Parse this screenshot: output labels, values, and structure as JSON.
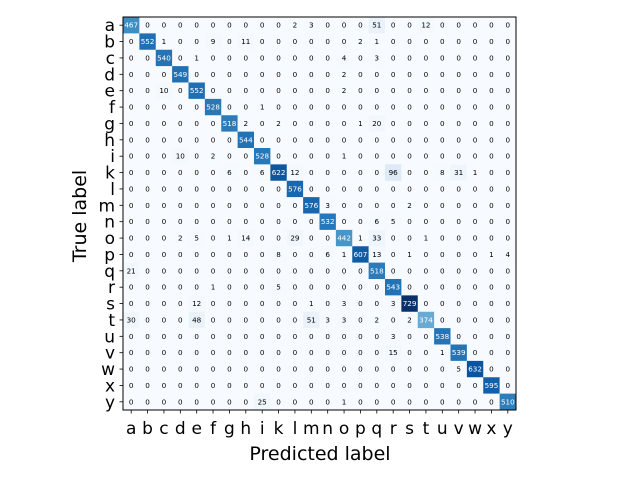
{
  "chart_data": {
    "type": "heatmap",
    "title": "",
    "xlabel": "Predicted label",
    "ylabel": "True label",
    "x_categories": [
      "a",
      "b",
      "c",
      "d",
      "e",
      "f",
      "g",
      "h",
      "i",
      "k",
      "l",
      "m",
      "n",
      "o",
      "p",
      "q",
      "r",
      "s",
      "t",
      "u",
      "v",
      "w",
      "x",
      "y"
    ],
    "y_categories": [
      "a",
      "b",
      "c",
      "d",
      "e",
      "f",
      "g",
      "h",
      "i",
      "k",
      "l",
      "m",
      "n",
      "o",
      "p",
      "q",
      "r",
      "s",
      "t",
      "u",
      "v",
      "w",
      "x",
      "y"
    ],
    "colormap": "Blues",
    "value_range": [
      0,
      729
    ],
    "matrix": [
      [
        467,
        0,
        0,
        0,
        0,
        0,
        0,
        0,
        0,
        0,
        2,
        3,
        0,
        0,
        0,
        51,
        0,
        0,
        12,
        0,
        0,
        0,
        0,
        0
      ],
      [
        0,
        552,
        1,
        0,
        0,
        9,
        0,
        11,
        0,
        0,
        0,
        0,
        0,
        0,
        2,
        1,
        0,
        0,
        0,
        0,
        0,
        0,
        0,
        0
      ],
      [
        0,
        0,
        540,
        0,
        1,
        0,
        0,
        0,
        0,
        0,
        0,
        0,
        0,
        4,
        0,
        3,
        0,
        0,
        0,
        0,
        0,
        0,
        0,
        0
      ],
      [
        0,
        0,
        0,
        549,
        0,
        0,
        0,
        0,
        0,
        0,
        0,
        0,
        0,
        2,
        0,
        0,
        0,
        0,
        0,
        0,
        0,
        0,
        0,
        0
      ],
      [
        0,
        0,
        10,
        0,
        552,
        0,
        0,
        0,
        0,
        0,
        0,
        0,
        0,
        2,
        0,
        0,
        0,
        0,
        0,
        0,
        0,
        0,
        0,
        0
      ],
      [
        0,
        0,
        0,
        0,
        0,
        528,
        0,
        0,
        1,
        0,
        0,
        0,
        0,
        0,
        0,
        0,
        0,
        0,
        0,
        0,
        0,
        0,
        0,
        0
      ],
      [
        0,
        0,
        0,
        0,
        0,
        0,
        518,
        2,
        0,
        2,
        0,
        0,
        0,
        0,
        1,
        20,
        0,
        0,
        0,
        0,
        0,
        0,
        0,
        0
      ],
      [
        0,
        0,
        0,
        0,
        0,
        0,
        0,
        544,
        0,
        0,
        0,
        0,
        0,
        0,
        0,
        0,
        0,
        0,
        0,
        0,
        0,
        0,
        0,
        0
      ],
      [
        0,
        0,
        0,
        10,
        0,
        2,
        0,
        0,
        528,
        0,
        0,
        0,
        0,
        1,
        0,
        0,
        0,
        0,
        0,
        0,
        0,
        0,
        0,
        0
      ],
      [
        0,
        0,
        0,
        0,
        0,
        0,
        6,
        0,
        6,
        622,
        12,
        0,
        0,
        0,
        0,
        0,
        96,
        0,
        0,
        8,
        31,
        1,
        0,
        0
      ],
      [
        0,
        0,
        0,
        0,
        0,
        0,
        0,
        0,
        0,
        0,
        576,
        0,
        0,
        0,
        0,
        0,
        0,
        0,
        0,
        0,
        0,
        0,
        0,
        0
      ],
      [
        0,
        0,
        0,
        0,
        0,
        0,
        0,
        0,
        0,
        0,
        0,
        576,
        3,
        0,
        0,
        0,
        0,
        2,
        0,
        0,
        0,
        0,
        0,
        0
      ],
      [
        0,
        0,
        0,
        0,
        0,
        0,
        0,
        0,
        0,
        0,
        0,
        0,
        532,
        0,
        0,
        6,
        5,
        0,
        0,
        0,
        0,
        0,
        0,
        0
      ],
      [
        0,
        0,
        0,
        2,
        5,
        0,
        1,
        14,
        0,
        0,
        29,
        0,
        0,
        442,
        1,
        33,
        0,
        0,
        1,
        0,
        0,
        0,
        0,
        0
      ],
      [
        0,
        0,
        0,
        0,
        0,
        0,
        0,
        0,
        0,
        8,
        0,
        0,
        6,
        1,
        607,
        13,
        0,
        1,
        0,
        0,
        0,
        0,
        1,
        4
      ],
      [
        21,
        0,
        0,
        0,
        0,
        0,
        0,
        0,
        0,
        0,
        0,
        0,
        0,
        0,
        0,
        518,
        0,
        0,
        0,
        0,
        0,
        0,
        0,
        0
      ],
      [
        0,
        0,
        0,
        0,
        0,
        1,
        0,
        0,
        0,
        5,
        0,
        0,
        0,
        0,
        0,
        0,
        543,
        0,
        0,
        0,
        0,
        0,
        0,
        0
      ],
      [
        0,
        0,
        0,
        0,
        12,
        0,
        0,
        0,
        0,
        0,
        0,
        1,
        0,
        3,
        0,
        0,
        3,
        729,
        0,
        0,
        0,
        0,
        0,
        0
      ],
      [
        30,
        0,
        0,
        0,
        48,
        0,
        0,
        0,
        0,
        0,
        0,
        51,
        3,
        3,
        0,
        2,
        0,
        2,
        374,
        0,
        0,
        0,
        0,
        0
      ],
      [
        0,
        0,
        0,
        0,
        0,
        0,
        0,
        0,
        0,
        0,
        0,
        0,
        0,
        0,
        0,
        0,
        3,
        0,
        0,
        538,
        0,
        0,
        0,
        0
      ],
      [
        0,
        0,
        0,
        0,
        0,
        0,
        0,
        0,
        0,
        0,
        0,
        0,
        0,
        0,
        0,
        0,
        15,
        0,
        0,
        1,
        539,
        0,
        0,
        0
      ],
      [
        0,
        0,
        0,
        0,
        0,
        0,
        0,
        0,
        0,
        0,
        0,
        0,
        0,
        0,
        0,
        0,
        0,
        0,
        0,
        0,
        5,
        632,
        0,
        0
      ],
      [
        0,
        0,
        0,
        0,
        0,
        0,
        0,
        0,
        0,
        0,
        0,
        0,
        0,
        0,
        0,
        0,
        0,
        0,
        0,
        0,
        0,
        0,
        595,
        0
      ],
      [
        0,
        0,
        0,
        0,
        0,
        0,
        0,
        0,
        25,
        0,
        0,
        0,
        0,
        1,
        0,
        0,
        0,
        0,
        0,
        0,
        0,
        0,
        0,
        510
      ]
    ]
  }
}
